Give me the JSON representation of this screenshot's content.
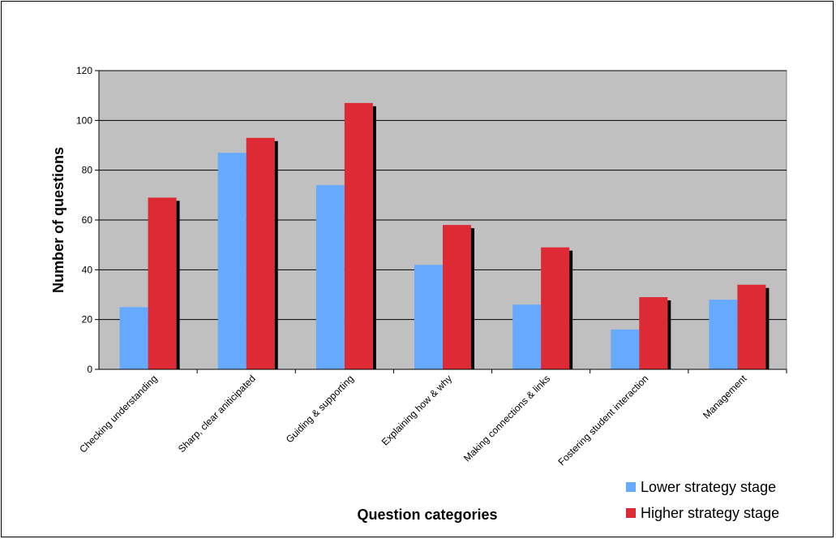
{
  "chart_data": {
    "type": "bar",
    "title": "",
    "xlabel": "Question categories",
    "ylabel": "Number of questions",
    "ylim": [
      0,
      120
    ],
    "yticks": [
      0,
      20,
      40,
      60,
      80,
      100,
      120
    ],
    "grid": true,
    "legend_position": "bottom-right",
    "categories": [
      "Checking understanding",
      "Sharp, clear aniticipated",
      "Guiding & supporting",
      "Explaining how & why",
      "Making connections & links",
      "Fostering student interaction",
      "Management"
    ],
    "series": [
      {
        "name": "Lower strategy stage",
        "color": "#66aaff",
        "values": [
          25,
          87,
          74,
          42,
          26,
          16,
          28
        ]
      },
      {
        "name": "Higher strategy stage",
        "color": "#dd2a35",
        "values": [
          69,
          93,
          107,
          58,
          49,
          29,
          34
        ]
      }
    ],
    "plot_background": "#c0c0c0",
    "shadow_color": "#000000"
  }
}
